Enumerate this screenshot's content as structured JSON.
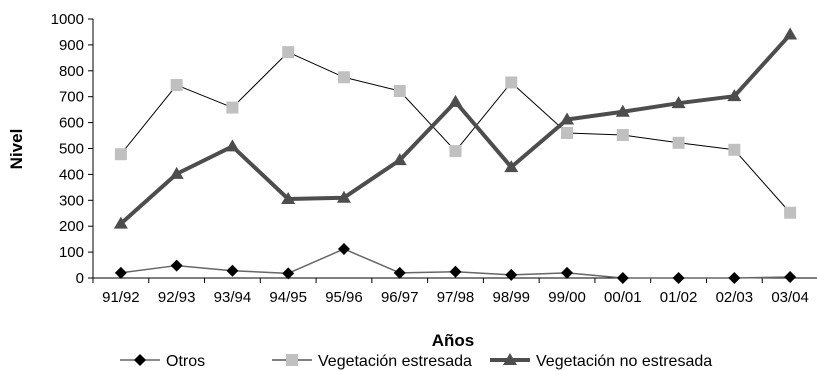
{
  "chart_data": {
    "type": "line",
    "xlabel": "Años",
    "ylabel": "Nivel",
    "ylim": [
      0,
      1000
    ],
    "yticks": [
      0,
      100,
      200,
      300,
      400,
      500,
      600,
      700,
      800,
      900,
      1000
    ],
    "grid": false,
    "legend_position": "bottom",
    "categories": [
      "91/92",
      "92/93",
      "93/94",
      "94/95",
      "95/96",
      "96/97",
      "97/98",
      "98/99",
      "99/00",
      "00/01",
      "01/02",
      "02/03",
      "03/04"
    ],
    "series": [
      {
        "name": "Otros",
        "marker": "diamond",
        "color": "#000000",
        "line_color": "#666666",
        "values": [
          20,
          48,
          28,
          18,
          112,
          20,
          24,
          12,
          20,
          0,
          0,
          0,
          4
        ]
      },
      {
        "name": "Vegetación estresada",
        "marker": "square",
        "color": "#c0c0c0",
        "line_color": "#000000",
        "values": [
          478,
          745,
          658,
          872,
          775,
          722,
          490,
          755,
          560,
          552,
          522,
          495,
          252
        ]
      },
      {
        "name": "Vegetación no estresada",
        "marker": "triangle",
        "color": "#4d4d4d",
        "line_color": "#4d4d4d",
        "values": [
          210,
          402,
          508,
          305,
          310,
          455,
          680,
          428,
          612,
          642,
          675,
          702,
          940
        ]
      }
    ]
  }
}
